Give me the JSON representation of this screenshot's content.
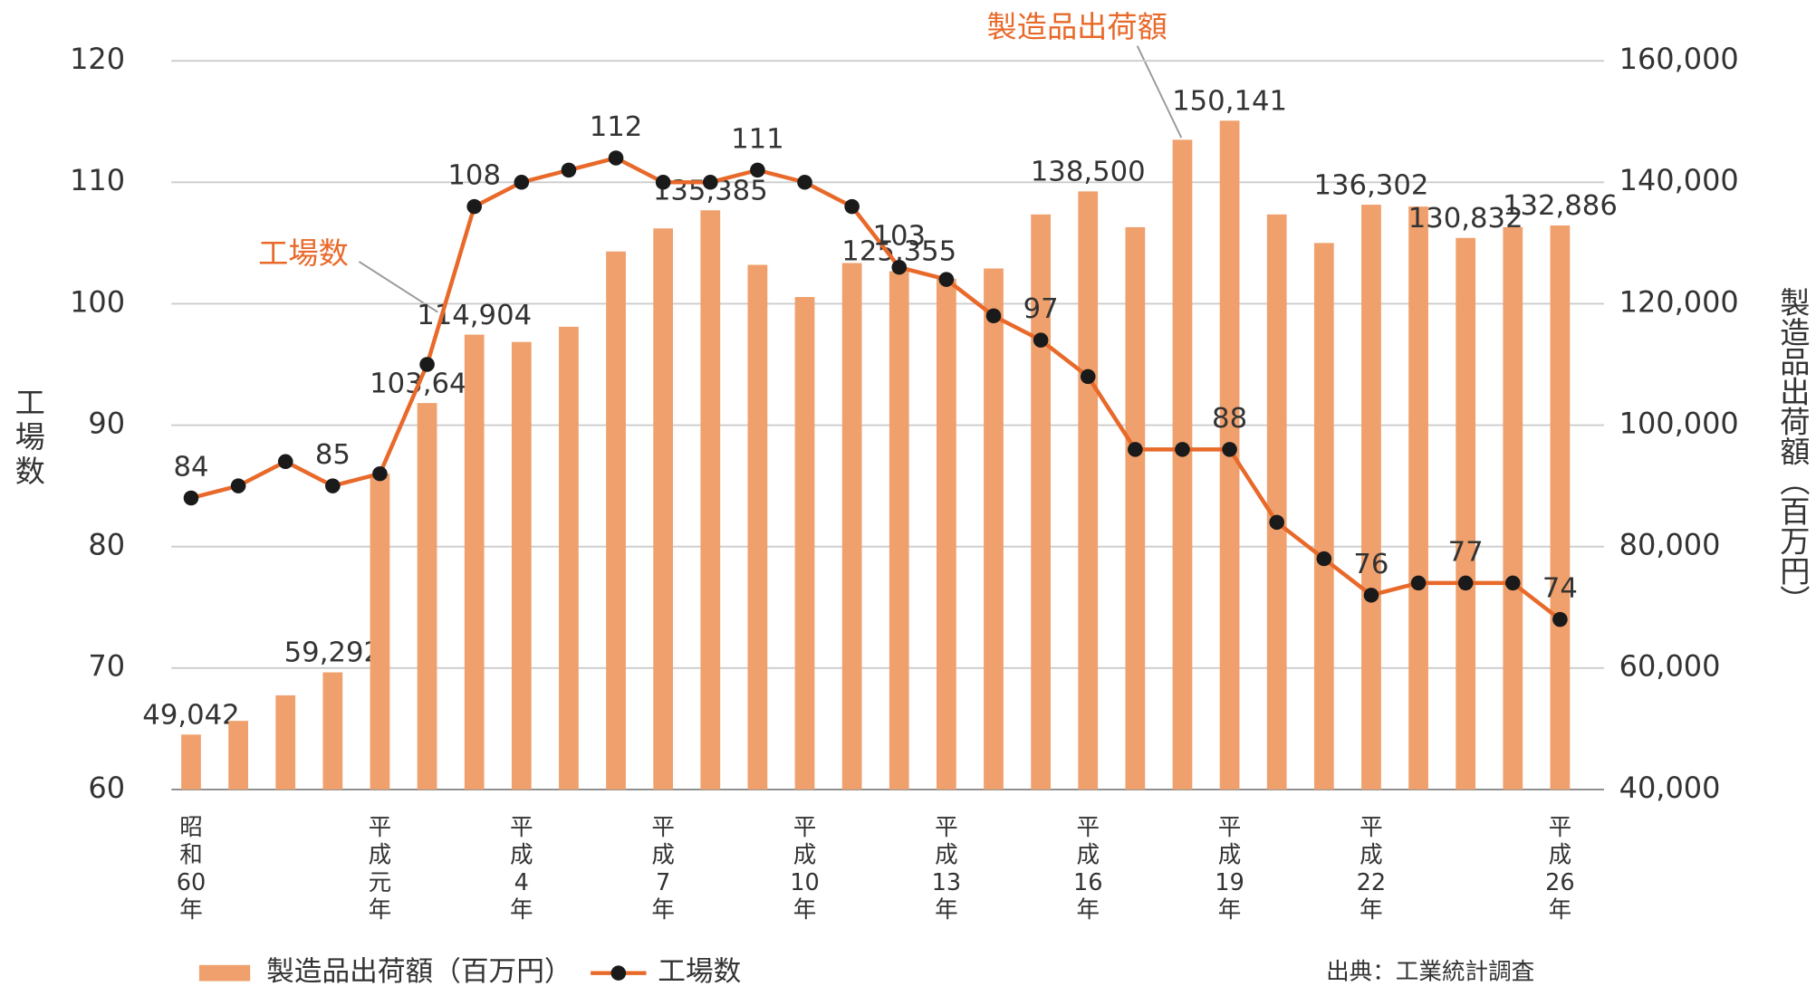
{
  "chart_data": {
    "type": "bar_line",
    "categories": [
      "昭和60年",
      null,
      null,
      null,
      "平成元年",
      null,
      null,
      "平成4年",
      null,
      null,
      "平成7年",
      null,
      null,
      "平成10年",
      null,
      null,
      "平成13年",
      null,
      null,
      "平成16年",
      null,
      null,
      "平成19年",
      null,
      null,
      "平成22年",
      null,
      null,
      null,
      "平成26年"
    ],
    "series": [
      {
        "name": "製造品出荷額（百万円）",
        "color": "#efa06c",
        "type": "bar",
        "axis": "y2",
        "values": [
          49042,
          51300,
          55500,
          59292,
          92000,
          103640,
          114904,
          113700,
          116200,
          128600,
          132400,
          135385,
          126400,
          121100,
          126700,
          125355,
          124100,
          125800,
          134700,
          138500,
          132600,
          147000,
          150141,
          134700,
          130000,
          136302,
          136000,
          130832,
          132600,
          132886
        ],
        "value_labels": [
          "49,042",
          null,
          null,
          "59,292",
          null,
          "103,640",
          "114,904",
          null,
          null,
          null,
          null,
          "135,385",
          null,
          null,
          null,
          "125,355",
          null,
          null,
          null,
          "138,500",
          null,
          null,
          "150,141",
          null,
          null,
          "136,302",
          null,
          "130,832",
          null,
          "132,886"
        ]
      },
      {
        "name": "工場数",
        "color": "#e8692a",
        "marker_color": "#1a1a1a",
        "type": "line",
        "axis": "y",
        "values": [
          84,
          85,
          87,
          85,
          86,
          95,
          108,
          110,
          111,
          112,
          110,
          110,
          111,
          110,
          108,
          103,
          102,
          99,
          97,
          94,
          88,
          88,
          88,
          82,
          79,
          76,
          77,
          77,
          77,
          74
        ],
        "value_labels": [
          "84",
          null,
          null,
          "85",
          null,
          null,
          "108",
          null,
          null,
          "112",
          null,
          null,
          "111",
          null,
          null,
          "103",
          null,
          null,
          "97",
          null,
          null,
          null,
          "88",
          null,
          null,
          "76",
          null,
          "77",
          null,
          "74"
        ]
      }
    ],
    "ylim": [
      60,
      120
    ],
    "yticks": [
      60,
      70,
      80,
      90,
      100,
      110,
      120
    ],
    "y2lim": [
      40000,
      160000
    ],
    "y2ticks": [
      {
        "value": 40000,
        "label": "40,000"
      },
      {
        "value": 60000,
        "label": "60,000"
      },
      {
        "value": 80000,
        "label": "80,000"
      },
      {
        "value": 100000,
        "label": "100,000"
      },
      {
        "value": 120000,
        "label": "120,000"
      },
      {
        "value": 140000,
        "label": "140,000"
      },
      {
        "value": 160000,
        "label": "160,000"
      }
    ],
    "y_label": "工場数",
    "y2_label": "製造品出荷額（百万円）",
    "annotations": [
      "製造品出荷額",
      "工場数"
    ],
    "source": "出典：工業統計調査",
    "grid": true,
    "legend": "bottom-left"
  }
}
